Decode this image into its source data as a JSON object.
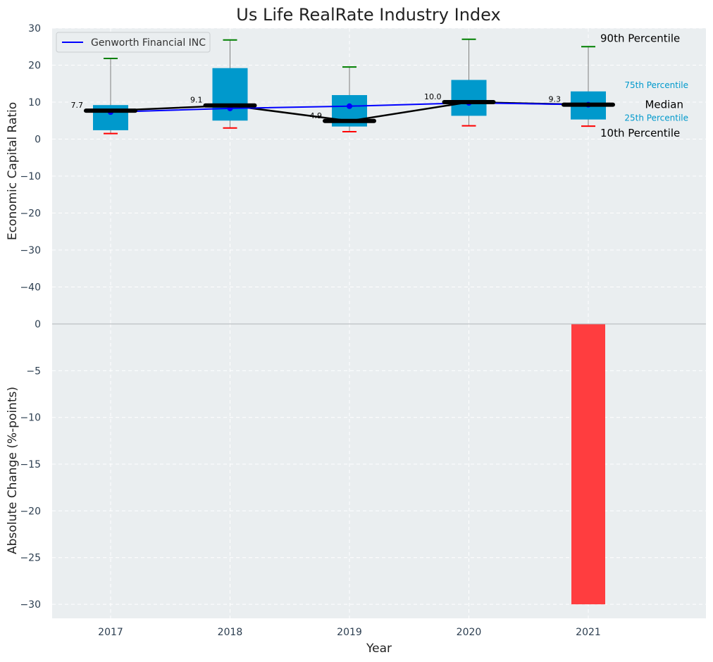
{
  "chart_data": [
    {
      "type": "box",
      "title": "Us Life RealRate Industry Index",
      "ylabel": "Economic Capital Ratio",
      "ylim": [
        -50,
        30
      ],
      "yticks": [
        30,
        20,
        10,
        0,
        -10,
        -20,
        -30,
        -40
      ],
      "grid": true,
      "legend": {
        "placement": "top-left",
        "entries": [
          "Genworth Financial INC"
        ]
      },
      "categories": [
        "2017",
        "2018",
        "2019",
        "2020",
        "2021"
      ],
      "percentiles": {
        "p10": [
          1.5,
          3.0,
          2.0,
          3.6,
          3.5
        ],
        "p25": [
          2.4,
          5.0,
          3.4,
          6.3,
          5.3
        ],
        "median": [
          7.7,
          9.1,
          4.9,
          10.0,
          9.3
        ],
        "p75": [
          9.2,
          19.2,
          11.9,
          16.0,
          12.9
        ],
        "p90": [
          21.8,
          26.8,
          19.5,
          27.0,
          25.0
        ]
      },
      "median_labels": [
        "7.7",
        "9.1",
        "4.9",
        "10.0",
        "9.3"
      ],
      "series": [
        {
          "name": "Genworth Financial INC",
          "values": [
            7.3,
            8.3,
            8.9,
            9.8,
            9.3
          ],
          "color": "#0000ff"
        }
      ],
      "guide_labels": {
        "p90": "90th Percentile",
        "p75": "75th Percentile",
        "median": "Median",
        "p25": "25th Percentile",
        "p10": "10th Percentile"
      },
      "colors": {
        "box": "#0099cc",
        "median_line": "#000000",
        "p90_cap": "#008000",
        "p10_cap": "#ff0000",
        "guide_text": "#0099cc",
        "background": "#eaeef0"
      }
    },
    {
      "type": "bar",
      "ylabel": "Absolute Change (%-points)",
      "xlabel": "Year",
      "ylim": [
        -31.5,
        0
      ],
      "yticks": [
        0,
        -5,
        -10,
        -15,
        -20,
        -25,
        -30
      ],
      "grid": true,
      "categories": [
        "2017",
        "2018",
        "2019",
        "2020",
        "2021"
      ],
      "values": [
        null,
        null,
        null,
        null,
        -30
      ],
      "colors": {
        "bar": "#ff3d3f",
        "background": "#eaeef0"
      }
    }
  ]
}
